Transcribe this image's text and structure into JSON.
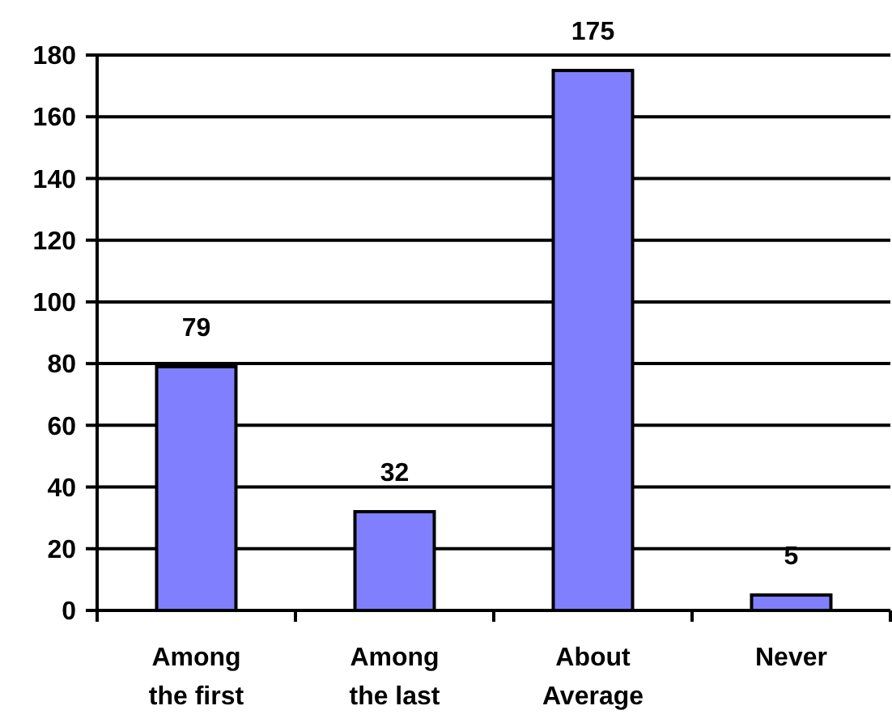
{
  "chart_data": {
    "type": "bar",
    "categories": [
      "Among the first",
      "Among the last",
      "About Average",
      "Never"
    ],
    "values": [
      79,
      32,
      175,
      5
    ],
    "color": "#8080ff",
    "ylim": [
      0,
      180
    ],
    "yticks": [
      0,
      20,
      40,
      60,
      80,
      100,
      120,
      140,
      160,
      180
    ],
    "grid": "y",
    "data_labels": true
  }
}
